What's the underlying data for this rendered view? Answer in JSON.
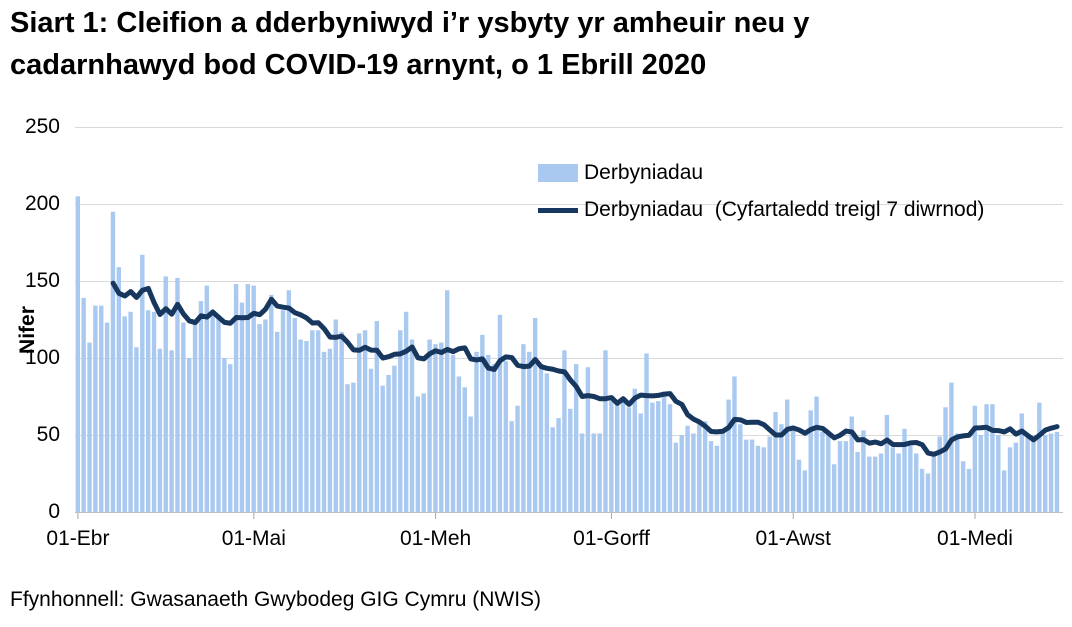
{
  "title": "Siart 1: Cleifion a dderbyniwyd i’r ysbyty yr amheuir neu y cadarnhawyd bod COVID-19 arnynt, o 1 Ebrill 2020",
  "source": "Ffynhonnell: Gwasanaeth Gwybodeg GIG Cymru (NWIS)",
  "legend": {
    "bar_label": "Derbyniadau",
    "line_label": "Derbyniadau  (Cyfartaledd treigl 7 diwrnod)"
  },
  "colors": {
    "bar": "#A9C9F1",
    "line": "#17375E",
    "grid": "#D9D9D9",
    "axis": "#BFBFBF",
    "tick": "#A6A6A6",
    "text": "#000000"
  },
  "chart_data": {
    "type": "bar",
    "title": "Siart 1: Cleifion a dderbyniwyd i’r ysbyty yr amheuir neu y cadarnhawyd bod COVID-19 arnynt, o 1 Ebrill 2020",
    "xlabel": "",
    "ylabel": "Nifer",
    "ylim": [
      0,
      250
    ],
    "y_ticks": [
      0,
      50,
      100,
      150,
      200,
      250
    ],
    "grid": "horizontal",
    "legend_position": "top-right-inside",
    "start_date": "2020-04-01",
    "x_ticks": [
      {
        "label": "01-Ebr",
        "day_index": 0
      },
      {
        "label": "01-Mai",
        "day_index": 30
      },
      {
        "label": "01-Meh",
        "day_index": 61
      },
      {
        "label": "01-Gorff",
        "day_index": 91
      },
      {
        "label": "01-Awst",
        "day_index": 122
      },
      {
        "label": "01-Medi",
        "day_index": 153
      }
    ],
    "series": [
      {
        "name": "Derbyniadau",
        "type": "bar",
        "values": [
          205,
          139,
          110,
          134,
          134,
          123,
          195,
          159,
          127,
          130,
          107,
          167,
          131,
          130,
          106,
          153,
          105,
          152,
          123,
          100,
          122,
          137,
          147,
          128,
          128,
          100,
          96,
          148,
          136,
          148,
          147,
          122,
          125,
          141,
          117,
          131,
          144,
          126,
          112,
          111,
          118,
          118,
          104,
          106,
          125,
          117,
          83,
          84,
          116,
          118,
          93,
          124,
          82,
          89,
          95,
          118,
          130,
          112,
          75,
          77,
          112,
          109,
          110,
          144,
          102,
          88,
          81,
          62,
          104,
          115,
          102,
          96,
          128,
          98,
          59,
          69,
          109,
          104,
          126,
          96,
          90,
          55,
          61,
          105,
          67,
          96,
          51,
          94,
          51,
          51,
          105,
          72,
          70,
          72,
          68,
          80,
          64,
          103,
          71,
          72,
          78,
          70,
          45,
          50,
          56,
          51,
          59,
          59,
          46,
          43,
          53,
          73,
          88,
          57,
          47,
          47,
          43,
          42,
          49,
          65,
          57,
          73,
          53,
          34,
          27,
          66,
          75,
          52,
          52,
          31,
          46,
          46,
          62,
          39,
          53,
          36,
          36,
          38,
          63,
          42,
          38,
          54,
          43,
          38,
          28,
          25,
          36,
          49,
          68,
          84,
          51,
          33,
          28,
          69,
          50,
          70,
          70,
          50,
          27,
          42,
          45,
          64,
          50,
          50,
          71,
          50,
          51,
          52
        ]
      },
      {
        "name": "Derbyniadau  (Cyfartaledd treigl 7 diwrnod)",
        "type": "line",
        "derived": "trailing 7-day mean of the bar series, plotted from day 7 onward"
      }
    ]
  }
}
